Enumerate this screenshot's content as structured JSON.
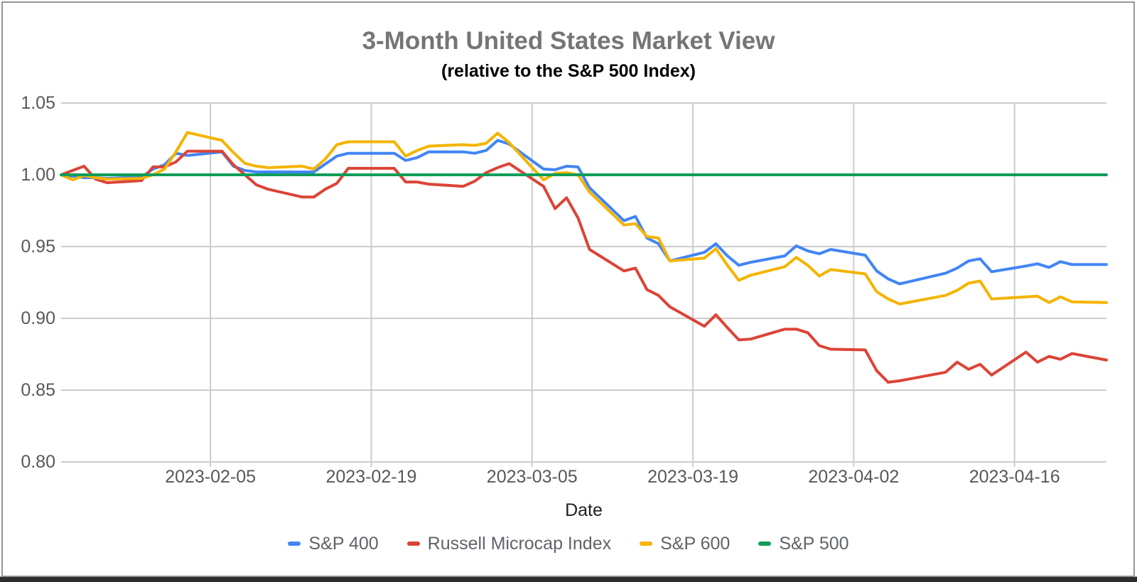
{
  "header": {
    "title": "3-Month United States Market View",
    "subtitle": "(relative to the S&P 500 Index)"
  },
  "x_axis": {
    "label": "Date",
    "tick_labels": [
      "2023-02-05",
      "2023-02-19",
      "2023-03-05",
      "2023-03-19",
      "2023-04-02",
      "2023-04-16"
    ]
  },
  "y_axis": {
    "tick_labels": [
      "1.05",
      "1.00",
      "0.95",
      "0.90",
      "0.85",
      "0.80"
    ]
  },
  "legend": [
    {
      "label": "S&P 400",
      "color": "#4285f4"
    },
    {
      "label": "Russell Microcap Index",
      "color": "#db4437"
    },
    {
      "label": "S&P 600",
      "color": "#f4b400"
    },
    {
      "label": "S&P 500",
      "color": "#0f9d58"
    }
  ],
  "colors": {
    "sp400": "#4285f4",
    "russell_microcap": "#db4437",
    "sp600": "#f4b400",
    "sp500": "#0f9d58",
    "gridline": "#cccccc",
    "title_gray": "#757575"
  },
  "chart_data": {
    "type": "line",
    "title": "3-Month United States Market View",
    "subtitle": "(relative to the S&P 500 Index)",
    "xlabel": "Date",
    "ylabel": "",
    "ylim": [
      0.8,
      1.05
    ],
    "y_ticks": [
      1.05,
      1.0,
      0.95,
      0.9,
      0.85,
      0.8
    ],
    "x_range": [
      "2023-01-23",
      "2023-04-24"
    ],
    "x_gridline_dates": [
      "2023-02-05",
      "2023-02-19",
      "2023-03-05",
      "2023-03-19",
      "2023-04-02",
      "2023-04-16"
    ],
    "grid": true,
    "legend_position": "bottom",
    "baseline_value": 1.0,
    "x": [
      "2023-01-23",
      "2023-01-24",
      "2023-01-25",
      "2023-01-26",
      "2023-01-27",
      "2023-01-30",
      "2023-01-31",
      "2023-02-01",
      "2023-02-02",
      "2023-02-03",
      "2023-02-06",
      "2023-02-07",
      "2023-02-08",
      "2023-02-09",
      "2023-02-10",
      "2023-02-13",
      "2023-02-14",
      "2023-02-15",
      "2023-02-16",
      "2023-02-17",
      "2023-02-21",
      "2023-02-22",
      "2023-02-23",
      "2023-02-24",
      "2023-02-27",
      "2023-02-28",
      "2023-03-01",
      "2023-03-02",
      "2023-03-03",
      "2023-03-06",
      "2023-03-07",
      "2023-03-08",
      "2023-03-09",
      "2023-03-10",
      "2023-03-13",
      "2023-03-14",
      "2023-03-15",
      "2023-03-16",
      "2023-03-17",
      "2023-03-20",
      "2023-03-21",
      "2023-03-22",
      "2023-03-23",
      "2023-03-24",
      "2023-03-27",
      "2023-03-28",
      "2023-03-29",
      "2023-03-30",
      "2023-03-31",
      "2023-04-03",
      "2023-04-04",
      "2023-04-05",
      "2023-04-06",
      "2023-04-10",
      "2023-04-11",
      "2023-04-12",
      "2023-04-13",
      "2023-04-14",
      "2023-04-17",
      "2023-04-18",
      "2023-04-19",
      "2023-04-20",
      "2023-04-21",
      "2023-04-24"
    ],
    "series": [
      {
        "name": "S&P 400",
        "color": "#4285f4",
        "values": [
          1.0,
          0.999,
          0.998,
          0.998,
          0.9975,
          0.9985,
          1.004,
          1.007,
          1.015,
          1.0135,
          1.016,
          1.006,
          1.003,
          1.002,
          1.002,
          1.002,
          1.002,
          1.0075,
          1.013,
          1.015,
          1.015,
          1.01,
          1.012,
          1.016,
          1.016,
          1.015,
          1.017,
          1.024,
          1.0215,
          1.004,
          1.0035,
          1.006,
          1.0055,
          0.991,
          0.968,
          0.971,
          0.956,
          0.952,
          0.94,
          0.946,
          0.952,
          0.9435,
          0.937,
          0.939,
          0.9435,
          0.9505,
          0.947,
          0.945,
          0.948,
          0.944,
          0.933,
          0.9275,
          0.924,
          0.9315,
          0.935,
          0.94,
          0.9415,
          0.9325,
          0.9365,
          0.938,
          0.9355,
          0.9395,
          0.9375,
          0.9375
        ]
      },
      {
        "name": "Russell Microcap Index",
        "color": "#db4437",
        "values": [
          1.0,
          1.003,
          1.006,
          0.997,
          0.9945,
          0.996,
          1.0055,
          1.0055,
          1.009,
          1.0165,
          1.0165,
          1.007,
          1.0,
          0.993,
          0.99,
          0.9845,
          0.9845,
          0.99,
          0.994,
          1.0045,
          1.0045,
          0.995,
          0.995,
          0.9935,
          0.992,
          0.9955,
          1.0015,
          1.005,
          1.0078,
          0.992,
          0.9765,
          0.984,
          0.97,
          0.948,
          0.933,
          0.935,
          0.92,
          0.916,
          0.908,
          0.8945,
          0.9025,
          0.8935,
          0.885,
          0.8855,
          0.8925,
          0.8925,
          0.89,
          0.881,
          0.8785,
          0.878,
          0.8635,
          0.8555,
          0.8565,
          0.8625,
          0.8695,
          0.8645,
          0.868,
          0.8605,
          0.8765,
          0.8695,
          0.8735,
          0.8715,
          0.8755,
          0.871
        ]
      },
      {
        "name": "S&P 600",
        "color": "#f4b400",
        "values": [
          1.0,
          0.9965,
          0.9995,
          0.998,
          0.997,
          0.9975,
          1.0,
          1.004,
          1.016,
          1.0295,
          1.024,
          1.0155,
          1.008,
          1.006,
          1.005,
          1.006,
          1.004,
          1.011,
          1.021,
          1.023,
          1.023,
          1.013,
          1.017,
          1.02,
          1.021,
          1.0205,
          1.022,
          1.029,
          1.0225,
          0.9965,
          1.001,
          1.0015,
          1.0,
          0.988,
          0.965,
          0.966,
          0.957,
          0.956,
          0.94,
          0.942,
          0.9485,
          0.937,
          0.9265,
          0.93,
          0.936,
          0.9425,
          0.937,
          0.9295,
          0.934,
          0.931,
          0.9185,
          0.9135,
          0.91,
          0.916,
          0.9195,
          0.9245,
          0.926,
          0.9135,
          0.915,
          0.9155,
          0.911,
          0.915,
          0.9115,
          0.911
        ]
      },
      {
        "name": "S&P 500",
        "color": "#0f9d58",
        "values": [
          1.0,
          1.0,
          1.0,
          1.0,
          1.0,
          1.0,
          1.0,
          1.0,
          1.0,
          1.0,
          1.0,
          1.0,
          1.0,
          1.0,
          1.0,
          1.0,
          1.0,
          1.0,
          1.0,
          1.0,
          1.0,
          1.0,
          1.0,
          1.0,
          1.0,
          1.0,
          1.0,
          1.0,
          1.0,
          1.0,
          1.0,
          1.0,
          1.0,
          1.0,
          1.0,
          1.0,
          1.0,
          1.0,
          1.0,
          1.0,
          1.0,
          1.0,
          1.0,
          1.0,
          1.0,
          1.0,
          1.0,
          1.0,
          1.0,
          1.0,
          1.0,
          1.0,
          1.0,
          1.0,
          1.0,
          1.0,
          1.0,
          1.0,
          1.0,
          1.0,
          1.0,
          1.0,
          1.0,
          1.0
        ]
      }
    ]
  }
}
